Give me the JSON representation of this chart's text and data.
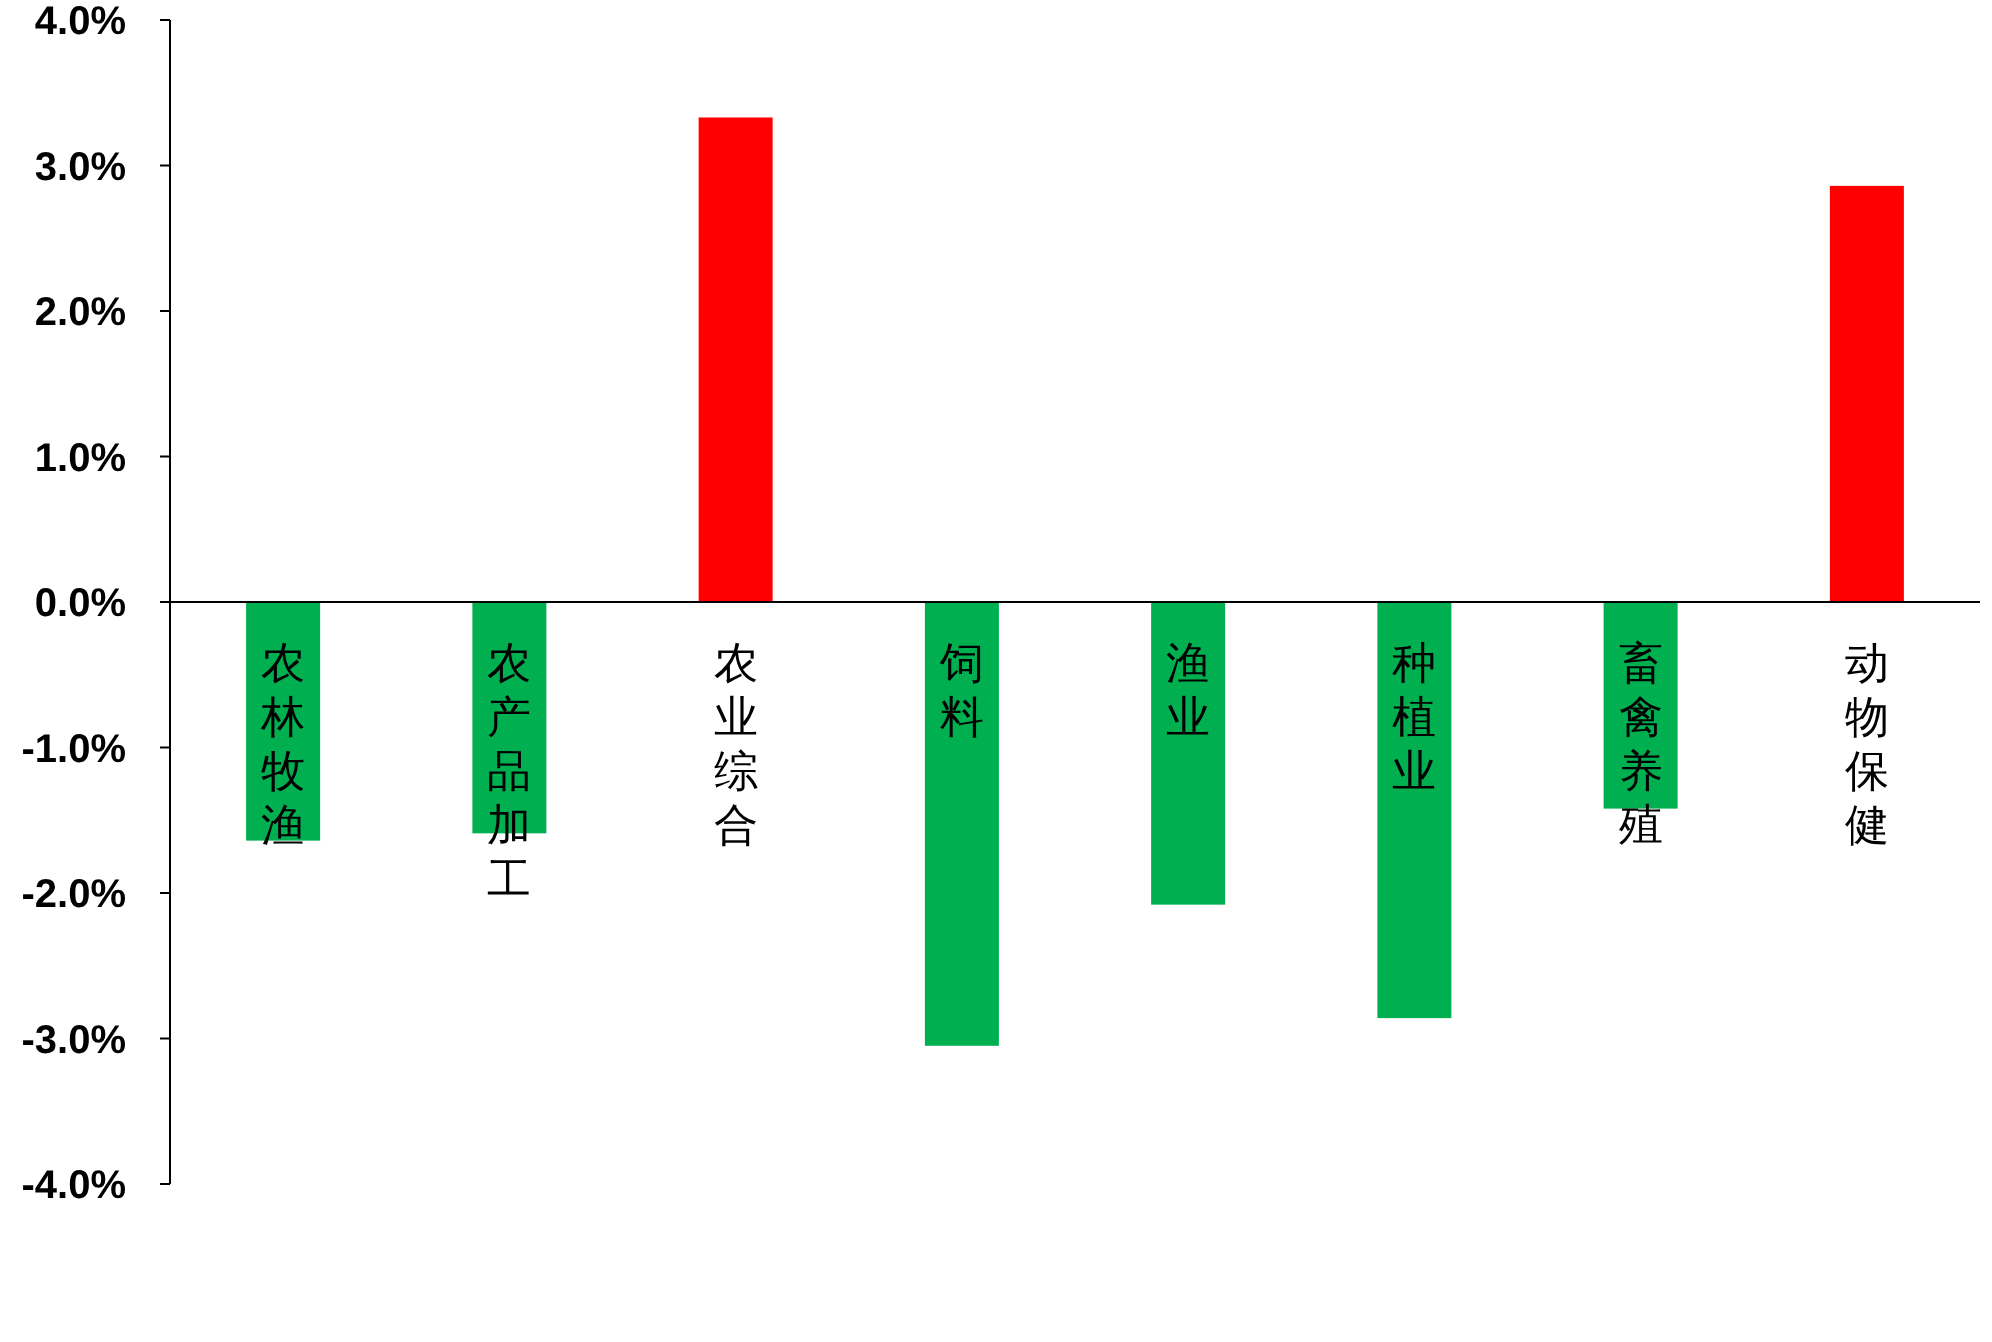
{
  "chart_data": {
    "type": "bar",
    "categories": [
      "农林牧渔",
      "农产品加工",
      "农业综合",
      "饲料",
      "渔业",
      "种植业",
      "畜禽养殖",
      "动物保健"
    ],
    "values": [
      -1.64,
      -1.59,
      3.33,
      -3.05,
      -2.08,
      -2.86,
      -1.42,
      2.86
    ],
    "colors": [
      "#00b050",
      "#00b050",
      "#ff0000",
      "#00b050",
      "#00b050",
      "#00b050",
      "#00b050",
      "#ff0000"
    ],
    "ylim": [
      -4,
      4
    ],
    "yticks": [
      {
        "value": -4,
        "label": "-4.0%"
      },
      {
        "value": -3,
        "label": "-3.0%"
      },
      {
        "value": -2,
        "label": "-2.0%"
      },
      {
        "value": -1,
        "label": "-1.0%"
      },
      {
        "value": 0,
        "label": "0.0%"
      },
      {
        "value": 1,
        "label": "1.0%"
      },
      {
        "value": 2,
        "label": "2.0%"
      },
      {
        "value": 3,
        "label": "3.0%"
      },
      {
        "value": 4,
        "label": "4.0%"
      }
    ],
    "grid": false
  }
}
